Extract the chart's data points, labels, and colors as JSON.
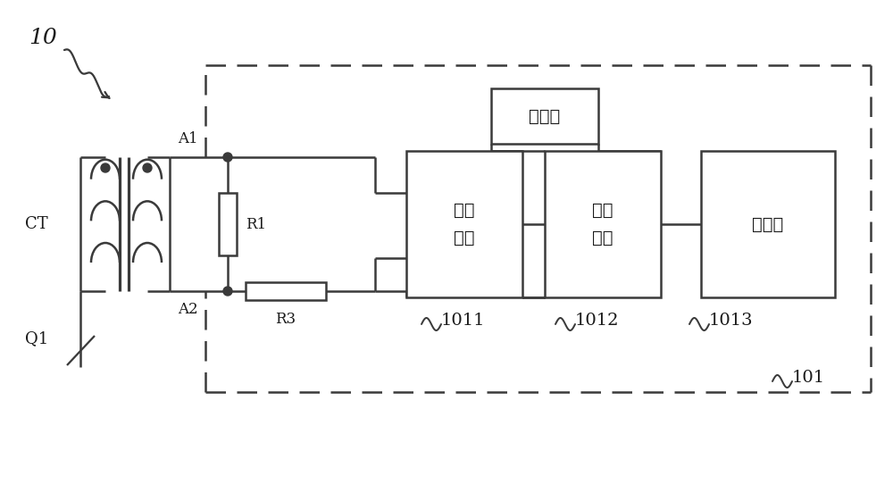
{
  "bg_color": "#ffffff",
  "line_color": "#3a3a3a",
  "line_width": 1.8,
  "text_color": "#1a1a1a",
  "label_10": "10",
  "label_CT": "CT",
  "label_Q1": "Q1",
  "label_A1": "A1",
  "label_A2": "A2",
  "label_R1": "R1",
  "label_R3": "R3",
  "label_dc": "直流源",
  "label_comp": "比较\n单元",
  "label_trig": "触发\n单元",
  "label_ctrl": "控制器",
  "label_1011": "1011",
  "label_1012": "1012",
  "label_1013": "1013",
  "label_101": "101"
}
